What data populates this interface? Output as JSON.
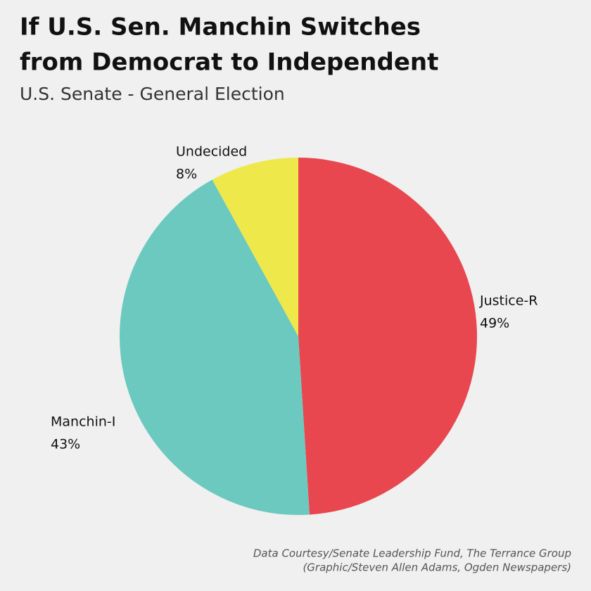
{
  "chart_data": {
    "type": "pie",
    "title": [
      "If U.S. Sen. Manchin Switches",
      "from Democrat to Independent"
    ],
    "subtitle": "U.S. Senate - General Election",
    "categories": [
      "Justice-R",
      "Manchin-I",
      "Undecided"
    ],
    "values": [
      49,
      43,
      8
    ],
    "value_labels": [
      "49%",
      "43%",
      "8%"
    ],
    "colors": [
      "#e8474f",
      "#6cc9c0",
      "#eee84a"
    ],
    "source": [
      "Data Courtesy/Senate Leadership Fund, The Terrance Group",
      "(Graphic/Steven Allen Adams, Ogden Newspapers)"
    ]
  }
}
